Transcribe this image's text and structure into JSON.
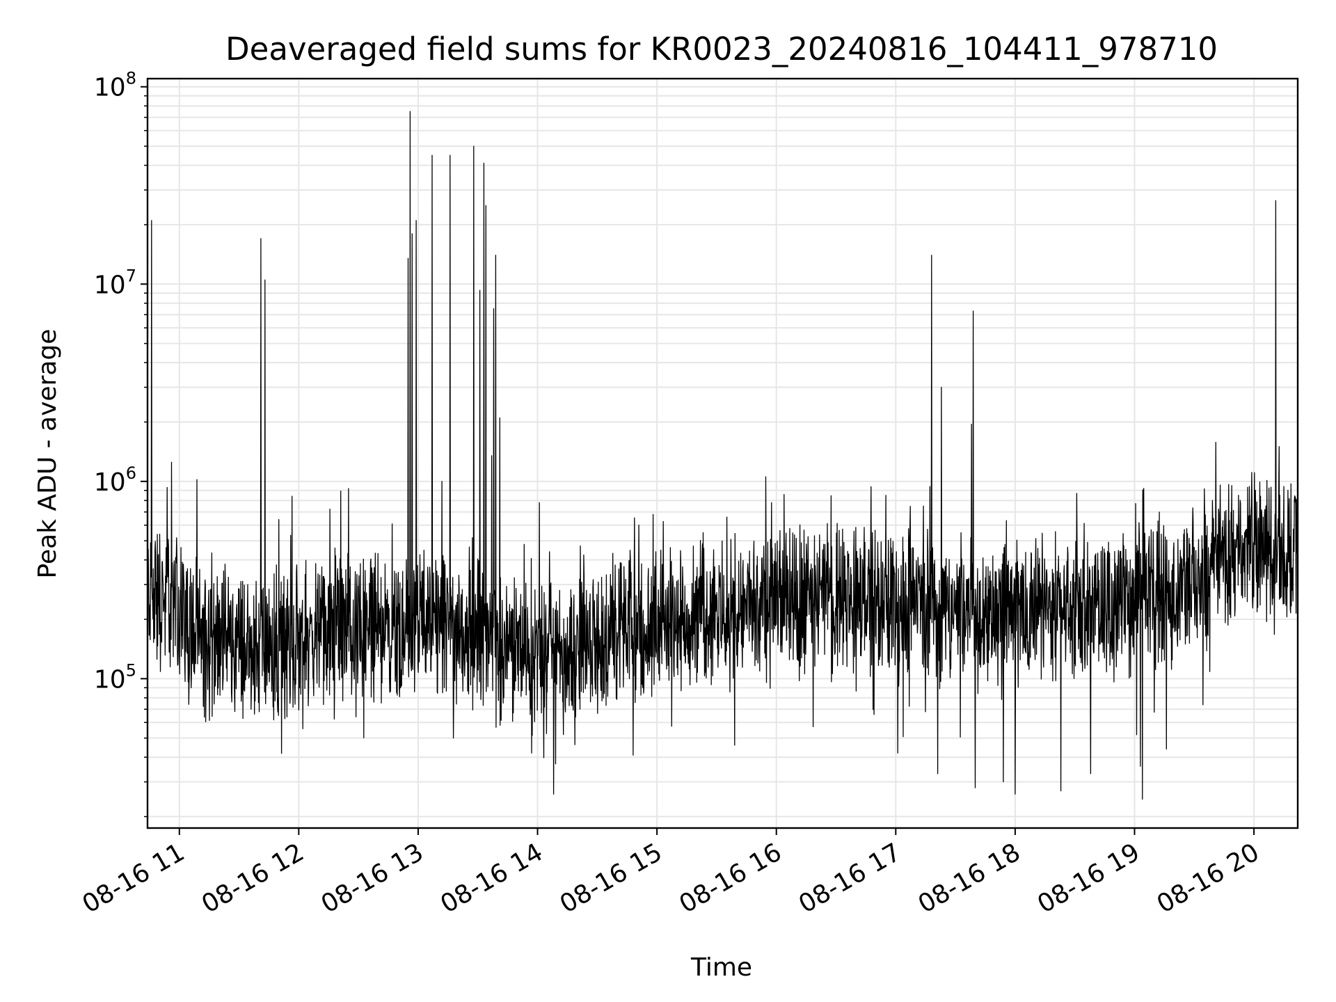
{
  "chart_data": {
    "type": "line",
    "title": "Deaveraged field sums for KR0023_20240816_104411_978710",
    "xlabel": "Time",
    "ylabel": "Peak ADU - average",
    "yscale": "log",
    "ylim": [
      17500,
      110000000
    ],
    "xlim": [
      "08-16 10:44",
      "08-16 20:22"
    ],
    "grid": true,
    "line_color": "#000000",
    "grid_color": "#e6e6e6",
    "x_ticks": [
      "08-16 11",
      "08-16 12",
      "08-16 13",
      "08-16 14",
      "08-16 15",
      "08-16 16",
      "08-16 17",
      "08-16 18",
      "08-16 19",
      "08-16 20"
    ],
    "y_ticks": [
      {
        "value": 100000,
        "base": "10",
        "exp": "5"
      },
      {
        "value": 1000000,
        "base": "10",
        "exp": "6"
      },
      {
        "value": 10000000,
        "base": "10",
        "exp": "7"
      },
      {
        "value": 100000000,
        "base": "10",
        "exp": "8"
      }
    ],
    "series": [
      {
        "baseline": [
          [
            "08-16 10:44",
            280000
          ],
          [
            "08-16 11:00",
            230000
          ],
          [
            "08-16 11:10",
            160000
          ],
          [
            "08-16 11:30",
            150000
          ],
          [
            "08-16 11:45",
            140000
          ],
          [
            "08-16 12:00",
            160000
          ],
          [
            "08-16 12:30",
            180000
          ],
          [
            "08-16 13:00",
            190000
          ],
          [
            "08-16 13:30",
            170000
          ],
          [
            "08-16 14:00",
            130000
          ],
          [
            "08-16 14:30",
            150000
          ],
          [
            "08-16 15:00",
            200000
          ],
          [
            "08-16 15:30",
            220000
          ],
          [
            "08-16 16:00",
            240000
          ],
          [
            "08-16 16:30",
            270000
          ],
          [
            "08-16 17:00",
            250000
          ],
          [
            "08-16 17:30",
            220000
          ],
          [
            "08-16 18:00",
            230000
          ],
          [
            "08-16 18:30",
            240000
          ],
          [
            "08-16 19:00",
            250000
          ],
          [
            "08-16 19:30",
            280000
          ],
          [
            "08-16 19:45",
            400000
          ],
          [
            "08-16 20:00",
            480000
          ],
          [
            "08-16 20:22",
            430000
          ]
        ],
        "spikes": [
          [
            "08-16 10:46",
            21000000
          ],
          [
            "08-16 10:56",
            1250000
          ],
          [
            "08-16 11:41",
            17000000
          ],
          [
            "08-16 11:43",
            10500000
          ],
          [
            "08-16 12:25",
            920000
          ],
          [
            "08-16 12:55",
            13500000
          ],
          [
            "08-16 12:56",
            75000000
          ],
          [
            "08-16 12:57",
            18000000
          ],
          [
            "08-16 12:59",
            21000000
          ],
          [
            "08-16 13:07",
            45000000
          ],
          [
            "08-16 13:12",
            1000000
          ],
          [
            "08-16 13:16",
            45000000
          ],
          [
            "08-16 13:28",
            50000000
          ],
          [
            "08-16 13:31",
            9300000
          ],
          [
            "08-16 13:33",
            41000000
          ],
          [
            "08-16 13:34",
            25000000
          ],
          [
            "08-16 13:37",
            1350000
          ],
          [
            "08-16 13:38",
            7500000
          ],
          [
            "08-16 13:39",
            14000000
          ],
          [
            "08-16 13:41",
            2100000
          ],
          [
            "08-16 14:01",
            780000
          ],
          [
            "08-16 14:58",
            680000
          ],
          [
            "08-16 16:55",
            850000
          ],
          [
            "08-16 17:18",
            14000000
          ],
          [
            "08-16 17:23",
            3000000
          ],
          [
            "08-16 17:38",
            1950000
          ],
          [
            "08-16 17:39",
            7300000
          ],
          [
            "08-16 20:11",
            26500000
          ],
          [
            "08-16 20:13",
            850000
          ]
        ],
        "dips": [
          [
            "08-16 11:36",
            70000
          ],
          [
            "08-16 11:54",
            64000
          ],
          [
            "08-16 13:57",
            42000
          ],
          [
            "08-16 14:08",
            26000
          ],
          [
            "08-16 14:09",
            37000
          ],
          [
            "08-16 14:48",
            41000
          ],
          [
            "08-16 15:39",
            46000
          ],
          [
            "08-16 17:01",
            42000
          ],
          [
            "08-16 17:21",
            33000
          ],
          [
            "08-16 17:40",
            28000
          ],
          [
            "08-16 17:54",
            30000
          ],
          [
            "08-16 18:00",
            26000
          ],
          [
            "08-16 18:23",
            27000
          ],
          [
            "08-16 18:38",
            33000
          ],
          [
            "08-16 19:01",
            52000
          ],
          [
            "08-16 19:03",
            36000
          ],
          [
            "08-16 19:04",
            24500
          ],
          [
            "08-16 19:16",
            44000
          ]
        ]
      }
    ]
  }
}
